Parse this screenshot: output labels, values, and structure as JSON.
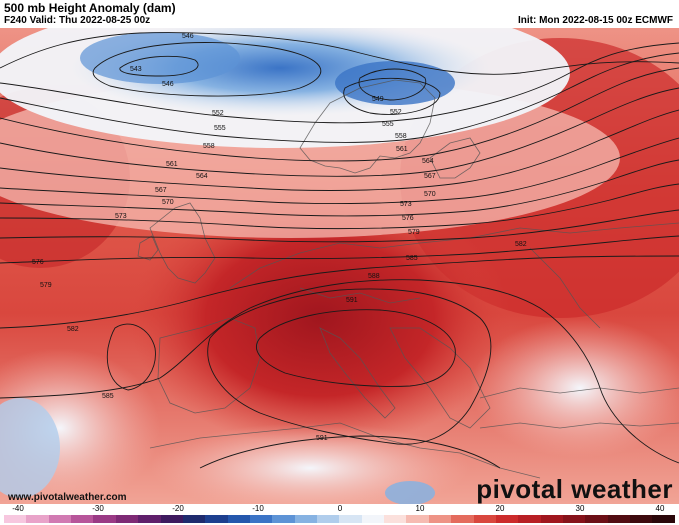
{
  "header": {
    "title": "500 mb Height Anomaly (dam)",
    "valid": "F240 Valid: Thu 2022-08-25 00z",
    "init": "Init: Mon 2022-08-15 00z ECMWF"
  },
  "contours": {
    "labels": [
      "546",
      "543",
      "546",
      "549",
      "552",
      "552",
      "555",
      "555",
      "558",
      "558",
      "561",
      "561",
      "564",
      "564",
      "567",
      "567",
      "570",
      "570",
      "573",
      "573",
      "576",
      "576",
      "579",
      "579",
      "582",
      "582",
      "585",
      "585",
      "588",
      "591",
      "591"
    ]
  },
  "colorbar": {
    "ticks": [
      "-40",
      "-30",
      "-20",
      "-10",
      "0",
      "10",
      "20",
      "30",
      "40"
    ],
    "colors": [
      "#f7c7df",
      "#e9a3c9",
      "#d17ab2",
      "#b7559a",
      "#9a3a85",
      "#7e2a75",
      "#5f1f6b",
      "#3e1a5f",
      "#1f2b6e",
      "#1d3f8f",
      "#2457ad",
      "#3b74c6",
      "#5d93d6",
      "#86b2e2",
      "#b0cdec",
      "#d7e5f4",
      "#f2f5fa",
      "#fbe0dc",
      "#f6bbb2",
      "#ee9386",
      "#e46b5d",
      "#d9473e",
      "#cc2b2b",
      "#b81f24",
      "#a0161e",
      "#86121a",
      "#6c0f16",
      "#520c12",
      "#3d0a0e",
      "#2a070a"
    ]
  },
  "footer": {
    "url": "www.pivotalweather.com",
    "brand": "pivotal weather"
  }
}
